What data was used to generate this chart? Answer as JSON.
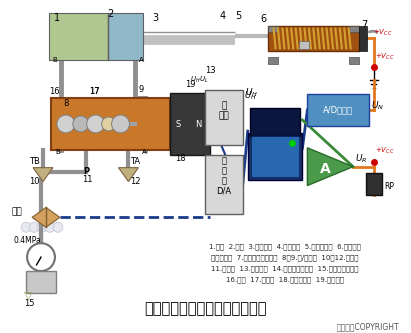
{
  "bg_color": "#ffffff",
  "title": "直滑式电位器控制气缸活塞行程",
  "copyright": "东方仿真COPYRIGHT",
  "caption_lines": [
    "1.气缸  2.活塞  3.直线轴承  4.气缸推杆  5.电位器滑杆  6.直滑式电",
    "位器传感器  7.滑动触点（电刷）  8、9.进/出气孔  10、12.消音器",
    "11.进气孔  13.电磁线圈  14.电动比例调节阀  15.气源处理三联件",
    "16.阀心  17.阀心杆  18.电磁阀壳体  19.永久磁铁"
  ],
  "orange_wire_color": "#e07820",
  "blue_wire_color": "#1a3a8a",
  "green_wire_color": "#3a8a3a",
  "cyl_body_color": "#b0c890",
  "cyl_piston_color": "#90b8c8",
  "cyl_rod_color": "#a8a8a8",
  "valve_body_color": "#c87828",
  "valve_spool_color": "#c0c0c0",
  "em_coil_color": "#404040",
  "resistor_body": "#a05010",
  "resistor_coil": "#d4a030",
  "bracket_color": "#909090",
  "computer_dark": "#1a3060",
  "computer_screen": "#2060a0",
  "adc_color": "#5090c0",
  "amp_color": "#4a9a4a",
  "dac_color": "#d8d8d8",
  "driver_color": "#d8d8d8",
  "rp_color": "#303030",
  "pipe_color": "#909090",
  "muffler_color": "#c0b080",
  "label_color": "#000000"
}
